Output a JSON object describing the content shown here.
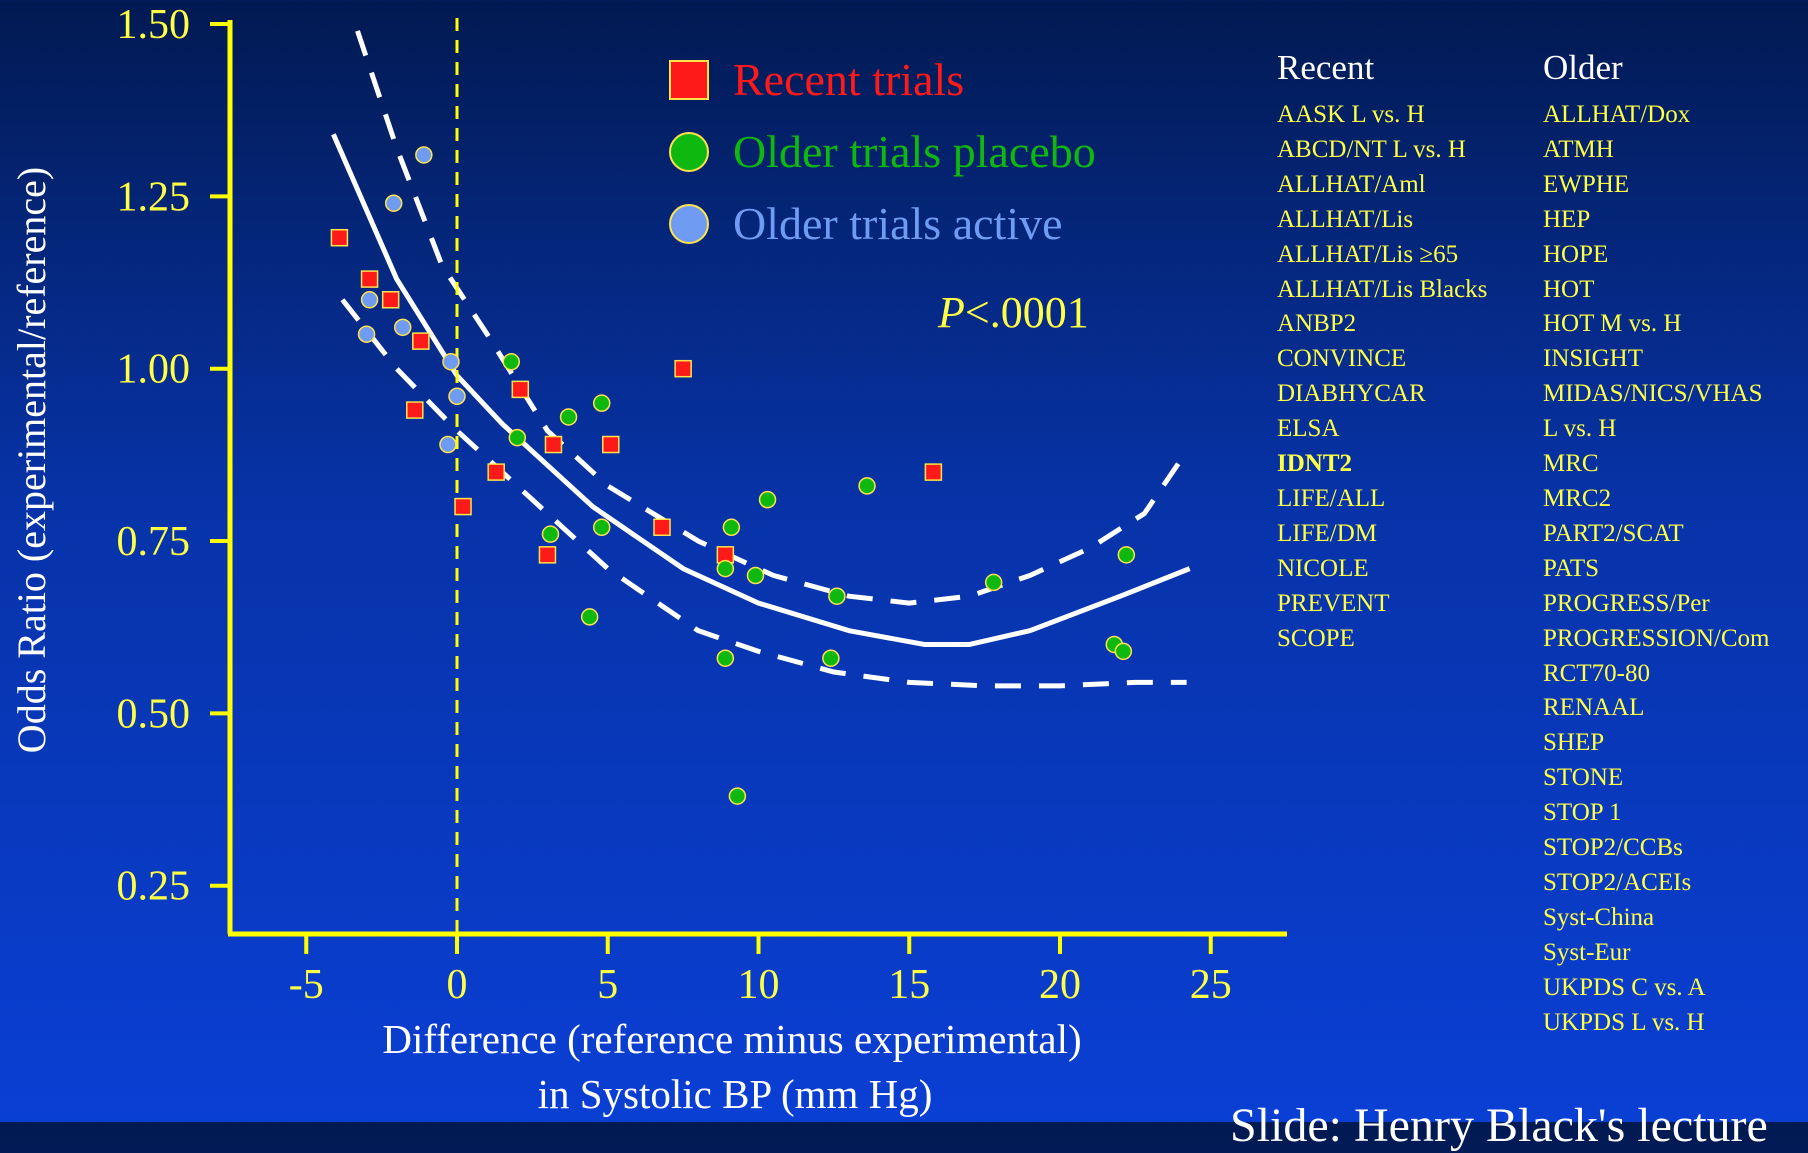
{
  "chart_data": {
    "type": "scatter",
    "title": "",
    "xlabel": [
      "Difference (reference minus experimental)",
      "in Systolic BP (mm Hg)"
    ],
    "ylabel": "Odds Ratio (experimental/reference)",
    "xlim": [
      -7.5,
      27.5
    ],
    "ylim": [
      0.18,
      1.5
    ],
    "x_ticks": [
      "-5",
      "0",
      "5",
      "10",
      "15",
      "20",
      "25"
    ],
    "y_ticks": [
      "0.25",
      "0.50",
      "0.75",
      "1.00",
      "1.25",
      "1.50"
    ],
    "reference_line_x": 0,
    "annotation": {
      "italic": "P",
      "text": "<.0001"
    },
    "legend": {
      "placement": "top-center",
      "entries": [
        {
          "label": "Recent trials",
          "marker": "square",
          "color": "#ff1a1a"
        },
        {
          "label": "Older trials placebo",
          "marker": "circle",
          "color": "#0fb80f"
        },
        {
          "label": "Older trials active",
          "marker": "circle",
          "color": "#6f9bf2"
        }
      ]
    },
    "series": [
      {
        "name": "Recent trials",
        "marker": "square",
        "color": "#ff1a1a",
        "points": [
          [
            -3.9,
            1.19
          ],
          [
            -2.9,
            1.13
          ],
          [
            -2.2,
            1.1
          ],
          [
            -1.2,
            1.04
          ],
          [
            -1.4,
            0.94
          ],
          [
            0.2,
            0.8
          ],
          [
            1.3,
            0.85
          ],
          [
            2.1,
            0.97
          ],
          [
            3.2,
            0.89
          ],
          [
            3,
            0.73
          ],
          [
            5.1,
            0.89
          ],
          [
            6.8,
            0.77
          ],
          [
            7.5,
            1.0
          ],
          [
            8.9,
            0.73
          ],
          [
            15.8,
            0.85
          ]
        ]
      },
      {
        "name": "Older trials placebo",
        "marker": "circle",
        "color": "#0fb80f",
        "points": [
          [
            1.8,
            1.01
          ],
          [
            2,
            0.9
          ],
          [
            3.7,
            0.93
          ],
          [
            4.8,
            0.95
          ],
          [
            3.1,
            0.76
          ],
          [
            4.8,
            0.77
          ],
          [
            4.4,
            0.64
          ],
          [
            9.1,
            0.77
          ],
          [
            8.9,
            0.71
          ],
          [
            10.3,
            0.81
          ],
          [
            9.9,
            0.7
          ],
          [
            12.6,
            0.67
          ],
          [
            13.6,
            0.83
          ],
          [
            8.9,
            0.58
          ],
          [
            12.4,
            0.58
          ],
          [
            9.3,
            0.38
          ],
          [
            17.8,
            0.69
          ],
          [
            21.8,
            0.6
          ],
          [
            22.1,
            0.59
          ],
          [
            22.2,
            0.73
          ]
        ]
      },
      {
        "name": "Older trials active",
        "marker": "circle",
        "color": "#6f9bf2",
        "points": [
          [
            -1.1,
            1.31
          ],
          [
            -2.1,
            1.24
          ],
          [
            -2.9,
            1.1
          ],
          [
            -3,
            1.05
          ],
          [
            -1.8,
            1.06
          ],
          [
            -0.2,
            1.01
          ],
          [
            0,
            0.96
          ],
          [
            -0.3,
            0.89
          ]
        ]
      }
    ],
    "fit_lines": [
      {
        "style": "solid",
        "points": [
          [
            -4.1,
            1.34
          ],
          [
            -2,
            1.13
          ],
          [
            0,
            0.99
          ],
          [
            1.5,
            0.92
          ],
          [
            4.5,
            0.8
          ],
          [
            7.5,
            0.71
          ],
          [
            10,
            0.66
          ],
          [
            13,
            0.62
          ],
          [
            15.5,
            0.6
          ],
          [
            17,
            0.6
          ],
          [
            19,
            0.62
          ],
          [
            22,
            0.67
          ],
          [
            24.3,
            0.71
          ]
        ]
      },
      {
        "style": "dashed",
        "points": [
          [
            -3.3,
            1.49
          ],
          [
            -2,
            1.32
          ],
          [
            -0.5,
            1.15
          ],
          [
            1,
            1.05
          ],
          [
            3,
            0.91
          ],
          [
            5,
            0.83
          ],
          [
            8,
            0.75
          ],
          [
            10.5,
            0.7
          ],
          [
            13,
            0.67
          ],
          [
            15,
            0.66
          ],
          [
            17,
            0.67
          ],
          [
            19,
            0.7
          ],
          [
            21,
            0.74
          ],
          [
            22.8,
            0.79
          ],
          [
            24.2,
            0.88
          ]
        ]
      },
      {
        "style": "dashed",
        "points": [
          [
            -3.8,
            1.1
          ],
          [
            -2,
            1.0
          ],
          [
            0,
            0.91
          ],
          [
            2,
            0.83
          ],
          [
            5,
            0.71
          ],
          [
            8,
            0.62
          ],
          [
            10,
            0.59
          ],
          [
            12.5,
            0.56
          ],
          [
            15,
            0.545
          ],
          [
            17.5,
            0.54
          ],
          [
            20,
            0.54
          ],
          [
            22.5,
            0.545
          ],
          [
            24.2,
            0.545
          ]
        ]
      }
    ]
  },
  "recent_list": {
    "header": "Recent",
    "items": [
      "AASK L vs. H",
      "ABCD/NT L vs. H",
      "ALLHAT/Aml",
      "ALLHAT/Lis",
      "ALLHAT/Lis ≥65",
      "ALLHAT/Lis Blacks",
      "ANBP2",
      "CONVINCE",
      "DIABHYCAR",
      "ELSA",
      "IDNT2",
      "LIFE/ALL",
      "LIFE/DM",
      "NICOLE",
      "PREVENT",
      "SCOPE"
    ],
    "bold_item": "IDNT2"
  },
  "older_list": {
    "header": "Older",
    "items": [
      "ALLHAT/Dox",
      "ATMH",
      "EWPHE",
      "HEP",
      "HOPE",
      "HOT",
      "HOT M vs. H",
      "INSIGHT",
      "MIDAS/NICS/VHAS",
      "L vs. H",
      "MRC",
      "MRC2",
      "PART2/SCAT",
      "PATS",
      "PROGRESS/Per",
      "PROGRESSION/Com",
      "RCT70-80",
      "RENAAL",
      "SHEP",
      "STONE",
      "STOP 1",
      "STOP2/CCBs",
      "STOP2/ACEIs",
      "Syst-China",
      "Syst-Eur",
      "UKPDS C vs. A",
      "UKPDS L vs. H"
    ]
  },
  "credit": "Slide: Henry Black's lecture",
  "colors": {
    "axis": "#ffff00",
    "text_yellow": "#ffff44",
    "fit": "#ffffff"
  }
}
